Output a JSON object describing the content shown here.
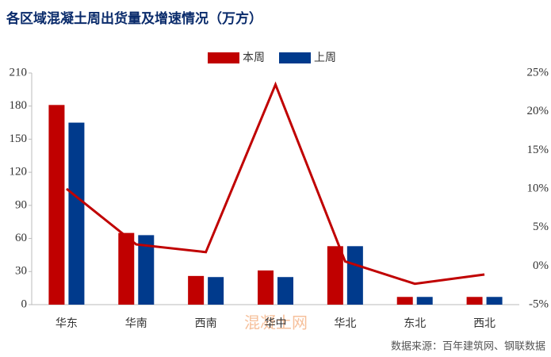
{
  "chart_data": {
    "type": "bar_line",
    "title": "各区域混凝土周出货量及增速情况（万方）",
    "categories": [
      "华东",
      "华南",
      "西南",
      "华中",
      "华北",
      "东北",
      "西北"
    ],
    "series": [
      {
        "name": "本周",
        "color": "#c00000",
        "values": [
          181,
          65,
          26,
          31,
          53,
          7,
          7
        ]
      },
      {
        "name": "上周",
        "color": "#003a8c",
        "values": [
          165,
          63,
          25,
          25,
          53,
          7,
          7
        ]
      },
      {
        "type": "line",
        "axis": "y2",
        "color": "#c00000",
        "values": [
          10,
          2.8,
          1.8,
          23.5,
          0.6,
          -2.3,
          -1.1
        ]
      }
    ],
    "ylim": [
      0,
      210
    ],
    "yticks": [
      0,
      30,
      60,
      90,
      120,
      150,
      180,
      210
    ],
    "y2lim": [
      -5,
      25
    ],
    "y2ticks": [
      {
        "value": -5,
        "label": "-5%"
      },
      {
        "value": 0,
        "label": "0%"
      },
      {
        "value": 5,
        "label": "5%"
      },
      {
        "value": 10,
        "label": "10%"
      },
      {
        "value": 15,
        "label": "15%"
      },
      {
        "value": 20,
        "label": "20%"
      },
      {
        "value": 25,
        "label": "25%"
      }
    ],
    "legend": "top",
    "watermark": "混凝土网",
    "source": "数据来源：百年建筑网、钢联数据"
  }
}
